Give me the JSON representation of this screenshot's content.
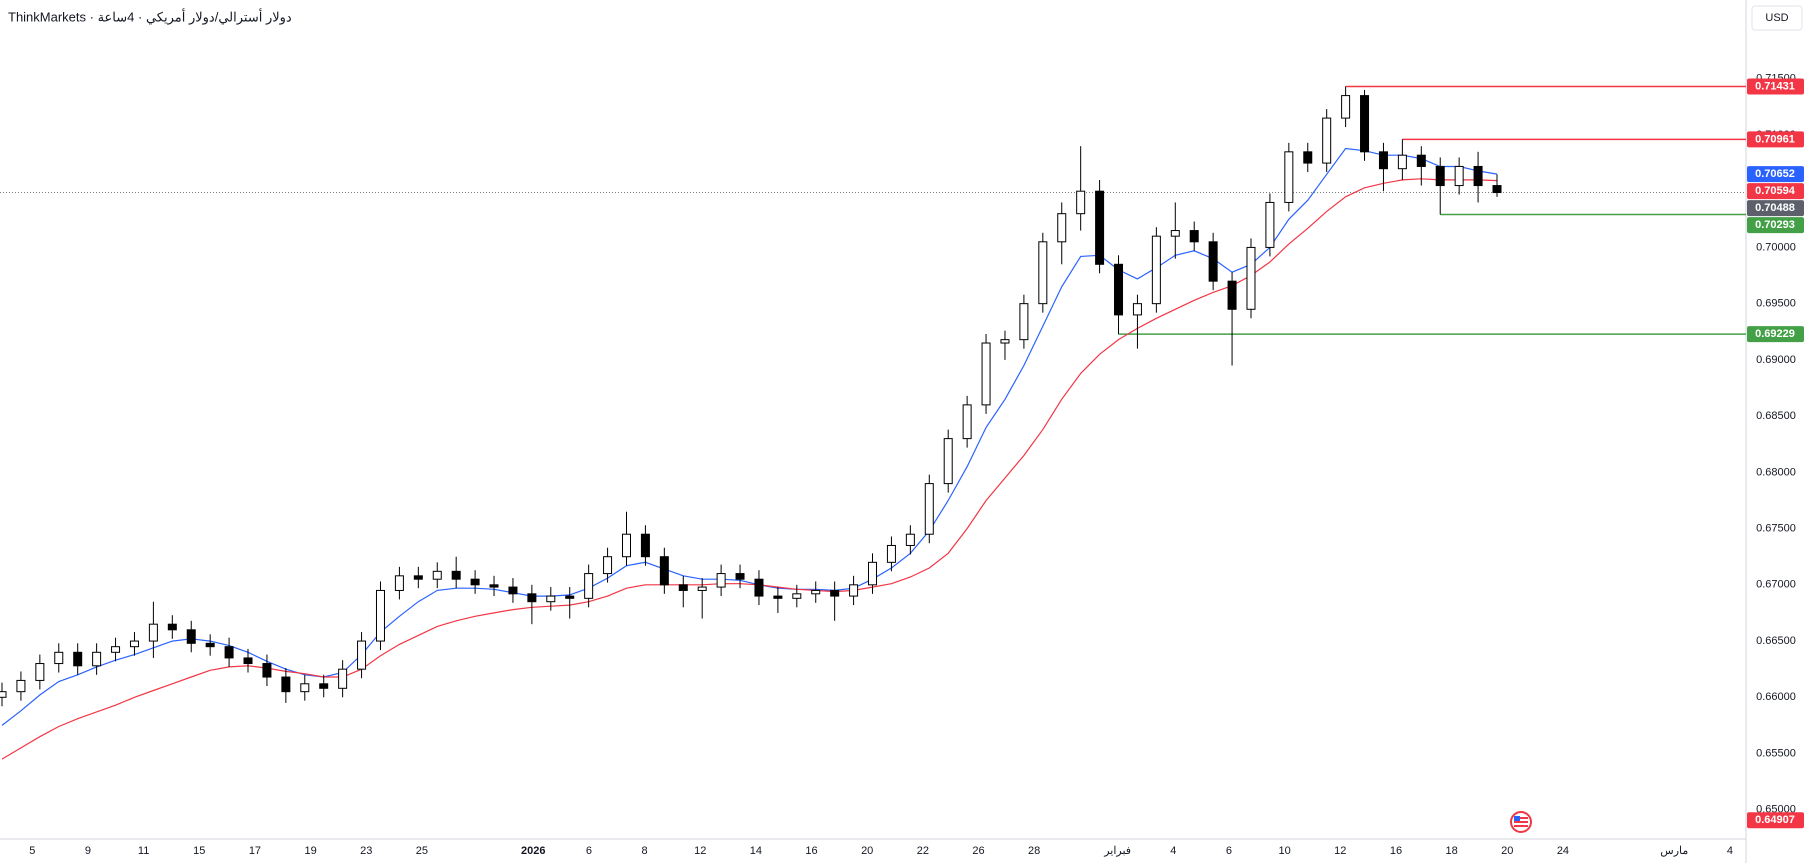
{
  "chart_data": {
    "type": "candlestick",
    "title": "ThinkMarkets · دولار أسترالي/دولار أمريكي · 4ساعة",
    "currency": "USD",
    "ylim": [
      0.6474,
      0.722
    ],
    "yticks": [
      {
        "value": 0.65,
        "label": "0.65000"
      },
      {
        "value": 0.655,
        "label": "0.65500"
      },
      {
        "value": 0.66,
        "label": "0.66000"
      },
      {
        "value": 0.665,
        "label": "0.66500"
      },
      {
        "value": 0.67,
        "label": "0.67000"
      },
      {
        "value": 0.675,
        "label": "0.67500"
      },
      {
        "value": 0.68,
        "label": "0.68000"
      },
      {
        "value": 0.685,
        "label": "0.68500"
      },
      {
        "value": 0.69,
        "label": "0.69000"
      },
      {
        "value": 0.695,
        "label": "0.69500"
      },
      {
        "value": 0.7,
        "label": "0.70000"
      },
      {
        "value": 0.705,
        "label": "0.70500"
      },
      {
        "value": 0.71,
        "label": "0.71000"
      },
      {
        "value": 0.715,
        "label": "0.71500"
      }
    ],
    "grid": false,
    "xaxis_labels": [
      "5",
      null,
      "9",
      null,
      "11",
      null,
      "15",
      null,
      "17",
      null,
      "19",
      null,
      "23",
      null,
      "25",
      null,
      null,
      null,
      "2026",
      null,
      "6",
      null,
      "8",
      null,
      "12",
      null,
      "14",
      null,
      "16",
      null,
      "20",
      null,
      "22",
      null,
      "26",
      null,
      "28",
      null,
      null,
      "فبراير",
      null,
      "4",
      null,
      "6",
      null,
      "10",
      null,
      "12",
      null,
      "16",
      null,
      "18",
      null,
      "20",
      null,
      "24",
      null,
      null,
      null,
      "مارس",
      null,
      "4"
    ],
    "open": [
      0.66,
      0.6605,
      0.6615,
      0.663,
      0.664,
      0.6628,
      0.664,
      0.6645,
      0.665,
      0.6665,
      0.666,
      0.6648,
      0.6645,
      0.6635,
      0.663,
      0.6618,
      0.6605,
      0.6612,
      0.6608,
      0.6625,
      0.665,
      0.6695,
      0.6708,
      0.6705,
      0.6712,
      0.6705,
      0.67,
      0.6698,
      0.6692,
      0.6685,
      0.669,
      0.6688,
      0.671,
      0.6725,
      0.6745,
      0.6725,
      0.67,
      0.6695,
      0.6698,
      0.671,
      0.6705,
      0.669,
      0.6688,
      0.6692,
      0.6695,
      0.669,
      0.67,
      0.672,
      0.6735,
      0.6745,
      0.679,
      0.683,
      0.686,
      0.6915,
      0.6918,
      0.695,
      0.7005,
      0.703,
      0.705,
      0.6985,
      0.694,
      0.695,
      0.701,
      0.7015,
      0.7005,
      0.697,
      0.6945,
      0.7,
      0.704,
      0.7085,
      0.7075,
      0.7115,
      0.7135,
      0.7085,
      0.707,
      0.7082,
      0.7072,
      0.7055,
      0.7072,
      0.7055
    ],
    "high": [
      0.6613,
      0.6623,
      0.6638,
      0.6648,
      0.6648,
      0.6648,
      0.6653,
      0.6658,
      0.6685,
      0.6673,
      0.6668,
      0.6656,
      0.6653,
      0.6643,
      0.6638,
      0.6626,
      0.662,
      0.662,
      0.6633,
      0.6658,
      0.6703,
      0.6716,
      0.6716,
      0.672,
      0.6725,
      0.6713,
      0.6708,
      0.6706,
      0.67,
      0.6698,
      0.6698,
      0.6718,
      0.6733,
      0.6765,
      0.6753,
      0.6733,
      0.6708,
      0.6706,
      0.6718,
      0.6718,
      0.6713,
      0.6698,
      0.67,
      0.6703,
      0.6703,
      0.6708,
      0.6728,
      0.6743,
      0.6753,
      0.6798,
      0.6838,
      0.6868,
      0.6923,
      0.6926,
      0.6958,
      0.7013,
      0.704,
      0.709,
      0.706,
      0.6993,
      0.6958,
      0.7018,
      0.704,
      0.7023,
      0.7013,
      0.6978,
      0.7008,
      0.7048,
      0.7093,
      0.7093,
      0.7123,
      0.71431,
      0.714,
      0.7093,
      0.70961,
      0.709,
      0.708,
      0.708,
      0.7085,
      0.7065
    ],
    "low": [
      0.6592,
      0.6597,
      0.6607,
      0.6622,
      0.662,
      0.662,
      0.6632,
      0.6637,
      0.6635,
      0.6652,
      0.664,
      0.6637,
      0.6627,
      0.6622,
      0.661,
      0.6595,
      0.6597,
      0.66,
      0.66,
      0.6617,
      0.6642,
      0.6687,
      0.6697,
      0.6697,
      0.6697,
      0.6692,
      0.669,
      0.6684,
      0.6665,
      0.6677,
      0.667,
      0.668,
      0.6702,
      0.6717,
      0.6717,
      0.6692,
      0.668,
      0.667,
      0.669,
      0.6697,
      0.6682,
      0.6675,
      0.668,
      0.6684,
      0.6668,
      0.6682,
      0.6692,
      0.6712,
      0.6727,
      0.6737,
      0.6782,
      0.6822,
      0.6852,
      0.69,
      0.691,
      0.6942,
      0.6985,
      0.7015,
      0.6977,
      0.69229,
      0.691,
      0.6942,
      0.699,
      0.6997,
      0.6962,
      0.6895,
      0.6937,
      0.6992,
      0.7032,
      0.7067,
      0.7067,
      0.7107,
      0.7077,
      0.705,
      0.706,
      0.7055,
      0.70293,
      0.7047,
      0.704,
      0.7045
    ],
    "close": [
      0.6605,
      0.6615,
      0.663,
      0.664,
      0.6628,
      0.664,
      0.6645,
      0.665,
      0.6665,
      0.666,
      0.6648,
      0.6645,
      0.6635,
      0.663,
      0.6618,
      0.6605,
      0.6612,
      0.6608,
      0.6625,
      0.665,
      0.6695,
      0.6708,
      0.6705,
      0.6712,
      0.6705,
      0.67,
      0.6698,
      0.6692,
      0.6685,
      0.669,
      0.6688,
      0.671,
      0.6725,
      0.6745,
      0.6725,
      0.67,
      0.6695,
      0.6698,
      0.671,
      0.6705,
      0.669,
      0.6688,
      0.6692,
      0.6695,
      0.669,
      0.67,
      0.672,
      0.6735,
      0.6745,
      0.679,
      0.683,
      0.686,
      0.6915,
      0.6918,
      0.695,
      0.7005,
      0.703,
      0.705,
      0.6985,
      0.694,
      0.695,
      0.701,
      0.7015,
      0.7005,
      0.697,
      0.6945,
      0.7,
      0.704,
      0.7085,
      0.7075,
      0.7115,
      0.7135,
      0.7085,
      0.707,
      0.7082,
      0.7072,
      0.7055,
      0.7072,
      0.7055,
      0.70488
    ],
    "last_close_label": "0.70488",
    "ema": [
      {
        "color": "#2962ff",
        "last_label": "0.70652",
        "values": [
          0.6575,
          0.6588,
          0.6602,
          0.6614,
          0.662,
          0.6627,
          0.6633,
          0.6638,
          0.6644,
          0.665,
          0.6652,
          0.665,
          0.6646,
          0.664,
          0.6632,
          0.6625,
          0.662,
          0.6618,
          0.6622,
          0.6638,
          0.6658,
          0.6672,
          0.6685,
          0.6695,
          0.6697,
          0.6697,
          0.6696,
          0.6693,
          0.669,
          0.669,
          0.6691,
          0.6697,
          0.6706,
          0.6717,
          0.672,
          0.6714,
          0.6708,
          0.6705,
          0.6705,
          0.6704,
          0.67,
          0.6697,
          0.6696,
          0.6696,
          0.6695,
          0.6697,
          0.6705,
          0.6715,
          0.6728,
          0.6748,
          0.6775,
          0.6805,
          0.684,
          0.6865,
          0.6895,
          0.693,
          0.6965,
          0.6992,
          0.6993,
          0.698,
          0.6972,
          0.6982,
          0.6993,
          0.6997,
          0.699,
          0.6978,
          0.6985,
          0.7,
          0.7025,
          0.7042,
          0.7065,
          0.7088,
          0.7086,
          0.7082,
          0.7082,
          0.7079,
          0.7072,
          0.7072,
          0.7068,
          0.70652
        ]
      },
      {
        "color": "#f23645",
        "last_label": "0.70594",
        "values": [
          0.6545,
          0.6555,
          0.6565,
          0.6574,
          0.6581,
          0.6587,
          0.6593,
          0.66,
          0.6606,
          0.6612,
          0.6618,
          0.6624,
          0.6627,
          0.6628,
          0.6626,
          0.6623,
          0.6621,
          0.6618,
          0.6618,
          0.6625,
          0.6637,
          0.6647,
          0.6655,
          0.6663,
          0.6668,
          0.6672,
          0.6675,
          0.6678,
          0.668,
          0.6681,
          0.6682,
          0.6685,
          0.669,
          0.6697,
          0.67,
          0.67,
          0.67,
          0.67,
          0.6701,
          0.6701,
          0.67,
          0.6698,
          0.6696,
          0.6695,
          0.6694,
          0.6695,
          0.6698,
          0.6701,
          0.6707,
          0.6715,
          0.6728,
          0.675,
          0.6775,
          0.6795,
          0.6815,
          0.6838,
          0.6865,
          0.6888,
          0.6905,
          0.6918,
          0.6928,
          0.6937,
          0.6945,
          0.6953,
          0.696,
          0.6966,
          0.6975,
          0.6987,
          0.7003,
          0.7017,
          0.7032,
          0.7045,
          0.7053,
          0.7057,
          0.706,
          0.7061,
          0.706,
          0.706,
          0.706,
          0.70594
        ]
      }
    ],
    "levels": [
      {
        "value": 0.71431,
        "label": "0.71431",
        "color": "#f23645"
      },
      {
        "value": 0.70961,
        "label": "0.70961",
        "color": "#f23645"
      },
      {
        "value": 0.70293,
        "label": "0.70293",
        "color": "#43a047"
      },
      {
        "value": 0.69229,
        "label": "0.69229",
        "color": "#43a047"
      }
    ],
    "extra_tags": [
      {
        "value": 0.64907,
        "label": "0.64907",
        "color": "#f23645"
      }
    ]
  }
}
